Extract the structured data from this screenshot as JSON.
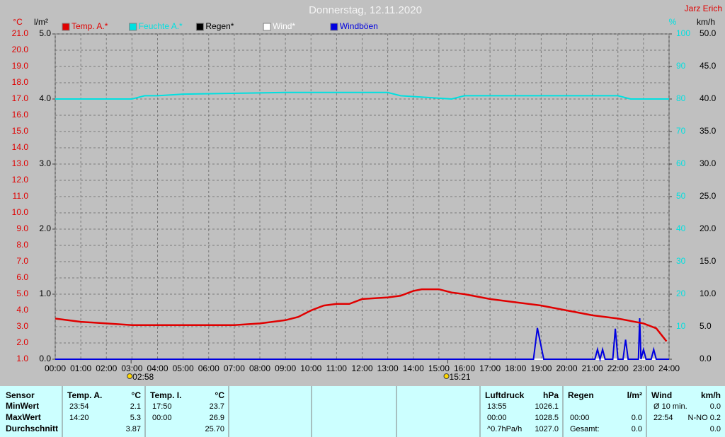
{
  "chart_data": {
    "type": "line",
    "title": "Donnerstag, 12.11.2020",
    "author": "Jarz Erich",
    "y_unit": "°C",
    "y2_unit": "l/m²",
    "y3_unit": "%",
    "y4_unit": "km/h",
    "grid": true,
    "xlim": [
      0,
      24
    ],
    "xticks": [
      {
        "value": 0,
        "label": "00:00"
      },
      {
        "value": 1,
        "label": "01:00"
      },
      {
        "value": 2,
        "label": "02:00"
      },
      {
        "value": 3,
        "label": "03:00"
      },
      {
        "value": 4,
        "label": "04:00"
      },
      {
        "value": 5,
        "label": "05:00"
      },
      {
        "value": 6,
        "label": "06:00"
      },
      {
        "value": 7,
        "label": "07:00"
      },
      {
        "value": 8,
        "label": "08:00"
      },
      {
        "value": 9,
        "label": "09:00"
      },
      {
        "value": 10,
        "label": "10:00"
      },
      {
        "value": 11,
        "label": "11:00"
      },
      {
        "value": 12,
        "label": "12:00"
      },
      {
        "value": 13,
        "label": "13:00"
      },
      {
        "value": 14,
        "label": "14:00"
      },
      {
        "value": 15,
        "label": "15:00"
      },
      {
        "value": 16,
        "label": "16:00"
      },
      {
        "value": 17,
        "label": "17:00"
      },
      {
        "value": 18,
        "label": "18:00"
      },
      {
        "value": 19,
        "label": "19:00"
      },
      {
        "value": 20,
        "label": "20:00"
      },
      {
        "value": 21,
        "label": "21:00"
      },
      {
        "value": 22,
        "label": "22:00"
      },
      {
        "value": 23,
        "label": "23:00"
      },
      {
        "value": 24,
        "label": "24:00"
      }
    ],
    "sun_markers": [
      "02:58",
      "15:21"
    ],
    "ylim": [
      1,
      21
    ],
    "yticks": [
      {
        "value": 1,
        "label": "1.0"
      },
      {
        "value": 2,
        "label": "2.0"
      },
      {
        "value": 3,
        "label": "3.0"
      },
      {
        "value": 4,
        "label": "4.0"
      },
      {
        "value": 5,
        "label": "5.0"
      },
      {
        "value": 6,
        "label": "6.0"
      },
      {
        "value": 7,
        "label": "7.0"
      },
      {
        "value": 8,
        "label": "8.0"
      },
      {
        "value": 9,
        "label": "9.0"
      },
      {
        "value": 10,
        "label": "10.0"
      },
      {
        "value": 11,
        "label": "11.0"
      },
      {
        "value": 12,
        "label": "12.0"
      },
      {
        "value": 13,
        "label": "13.0"
      },
      {
        "value": 14,
        "label": "14.0"
      },
      {
        "value": 15,
        "label": "15.0"
      },
      {
        "value": 16,
        "label": "16.0"
      },
      {
        "value": 17,
        "label": "17.0"
      },
      {
        "value": 18,
        "label": "18.0"
      },
      {
        "value": 19,
        "label": "19.0"
      },
      {
        "value": 20,
        "label": "20.0"
      },
      {
        "value": 21,
        "label": "21.0"
      }
    ],
    "y2lim": [
      0,
      5
    ],
    "y2ticks": [
      {
        "value": 0,
        "label": "0.0"
      },
      {
        "value": 1,
        "label": "1.0"
      },
      {
        "value": 2,
        "label": "2.0"
      },
      {
        "value": 3,
        "label": "3.0"
      },
      {
        "value": 4,
        "label": "4.0"
      },
      {
        "value": 5,
        "label": "5.0"
      }
    ],
    "y3lim": [
      0,
      100
    ],
    "y3ticks": [
      10,
      20,
      30,
      40,
      50,
      60,
      70,
      80,
      90,
      100
    ],
    "y4lim": [
      0,
      50
    ],
    "y4ticks": [
      {
        "value": 0,
        "label": "0.0"
      },
      {
        "value": 5,
        "label": "5.0"
      },
      {
        "value": 10,
        "label": "10.0"
      },
      {
        "value": 15,
        "label": "15.0"
      },
      {
        "value": 20,
        "label": "20.0"
      },
      {
        "value": 25,
        "label": "25.0"
      },
      {
        "value": 30,
        "label": "30.0"
      },
      {
        "value": 35,
        "label": "35.0"
      },
      {
        "value": 40,
        "label": "40.0"
      },
      {
        "value": 45,
        "label": "45.0"
      },
      {
        "value": 50,
        "label": "50.0"
      }
    ],
    "series": [
      {
        "name": "Temp. A.*",
        "color": "#e00000",
        "axis": "y",
        "x": [
          0,
          1,
          2,
          3,
          4,
          5,
          6,
          7,
          8,
          9,
          9.5,
          10,
          10.5,
          11,
          11.5,
          12,
          13,
          13.5,
          14,
          14.33,
          15,
          15.5,
          16,
          17,
          18,
          19,
          20,
          21,
          22,
          23,
          23.5,
          23.9
        ],
        "values": [
          3.5,
          3.3,
          3.2,
          3.1,
          3.1,
          3.1,
          3.1,
          3.1,
          3.2,
          3.4,
          3.6,
          4.0,
          4.3,
          4.4,
          4.4,
          4.7,
          4.8,
          4.9,
          5.2,
          5.3,
          5.3,
          5.1,
          5.0,
          4.7,
          4.5,
          4.3,
          4.0,
          3.7,
          3.5,
          3.2,
          2.9,
          2.1
        ]
      },
      {
        "name": "Feuchte A.*",
        "color": "#00e0e0",
        "axis": "y3",
        "x": [
          0,
          3,
          3.5,
          4,
          5,
          9,
          13,
          13.5,
          15.5,
          16,
          22,
          22.5,
          24
        ],
        "values": [
          80,
          80,
          81,
          81,
          81.5,
          82,
          82,
          81,
          80,
          81,
          81,
          80,
          80
        ]
      },
      {
        "name": "Regen*",
        "color": "#000000",
        "axis": "y2",
        "x": [
          0,
          24
        ],
        "values": [
          0,
          0
        ]
      },
      {
        "name": "Wind*",
        "color": "#ffffff",
        "axis": "y4",
        "x": [
          0,
          24
        ],
        "values": [
          0,
          0
        ]
      },
      {
        "name": "Windböen",
        "color": "#0000e0",
        "axis": "y4",
        "x": [
          0,
          18.7,
          18.85,
          19.1,
          21.1,
          21.2,
          21.3,
          21.4,
          21.5,
          21.6,
          21.8,
          21.9,
          22.0,
          22.2,
          22.3,
          22.4,
          22.8,
          22.85,
          22.9,
          23.0,
          23.1,
          23.3,
          23.4,
          23.5,
          24
        ],
        "values": [
          0,
          0,
          4.8,
          0,
          0,
          1.5,
          0,
          1.5,
          0,
          0,
          0,
          4.7,
          0,
          0,
          3.0,
          0,
          0,
          6.3,
          0,
          1.5,
          0,
          0,
          1.5,
          0,
          0
        ]
      }
    ]
  },
  "stats": {
    "row_labels": {
      "header": "Sensor",
      "rows": [
        "MinWert",
        "MaxWert",
        "Durchschnitt"
      ]
    },
    "columns": [
      {
        "header": [
          "Temp. A.",
          "°C"
        ],
        "rows": [
          [
            "23:54",
            "2.1"
          ],
          [
            "14:20",
            "5.3"
          ],
          [
            null,
            "3.87"
          ]
        ]
      },
      {
        "header": [
          "Temp. I.",
          "°C"
        ],
        "rows": [
          [
            "17:50",
            "23.7"
          ],
          [
            "00:00",
            "26.9"
          ],
          [
            null,
            "25.70"
          ]
        ]
      },
      {
        "header": [
          "Luftdruck",
          "hPa"
        ],
        "rows": [
          [
            "13:55",
            "1026.1"
          ],
          [
            "00:00",
            "1028.5"
          ],
          [
            "^0.7hPa/h",
            "1027.0"
          ]
        ]
      },
      {
        "header": [
          "Regen",
          "l/m²"
        ],
        "rows": [
          [
            null,
            null
          ],
          [
            "00:00",
            "0.0"
          ],
          [
            "Gesamt:",
            "0.0"
          ]
        ]
      },
      {
        "header": [
          "Wind",
          "km/h"
        ],
        "rows": [
          [
            "Ø 10 min.",
            "0.0"
          ],
          [
            "22:54",
            "N-NO 0.2"
          ],
          [
            null,
            "0.0"
          ]
        ]
      }
    ]
  }
}
